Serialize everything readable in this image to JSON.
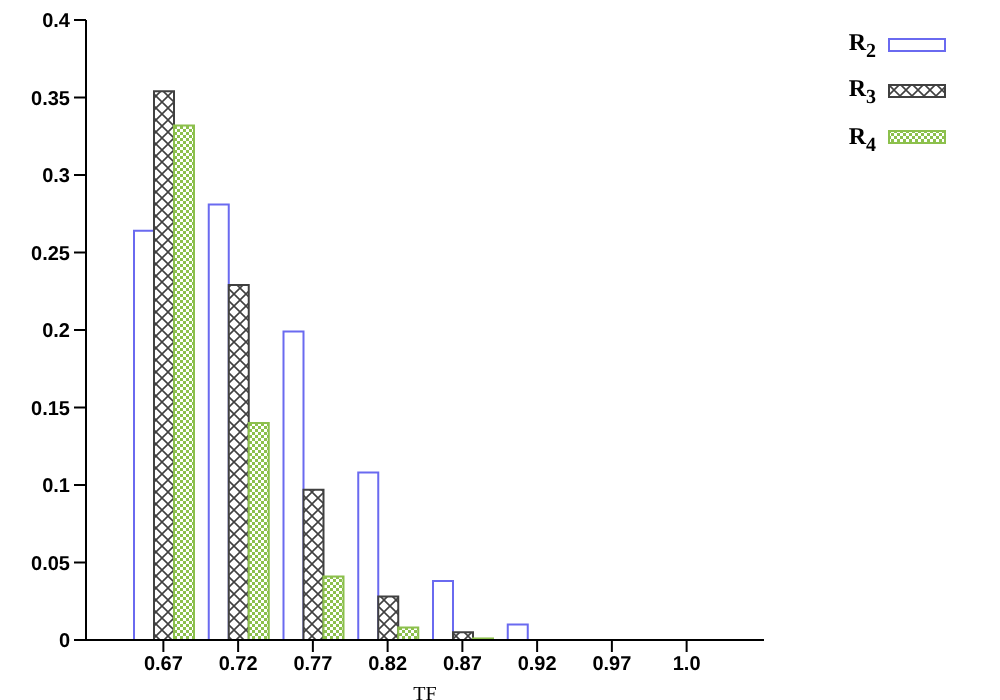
{
  "chart_data": {
    "type": "bar",
    "xlabel": "TF",
    "categories": [
      "0.67",
      "0.72",
      "0.77",
      "0.82",
      "0.87",
      "0.92",
      "0.97",
      "1.0"
    ],
    "series": [
      {
        "name": "R$_{2}$",
        "color": "#6a6af0",
        "values": [
          0.264,
          0.281,
          0.199,
          0.108,
          0.038,
          0.01,
          0,
          0
        ]
      },
      {
        "name": "R$_{3}$",
        "color": "#404040",
        "values": [
          0.354,
          0.229,
          0.097,
          0.028,
          0.005,
          0,
          0,
          0
        ]
      },
      {
        "name": "R$_{4}$",
        "color": "#8cc04c",
        "values": [
          0.332,
          0.14,
          0.041,
          0.008,
          0.001,
          0,
          0,
          0
        ]
      }
    ],
    "ylim": [
      0,
      0.4
    ],
    "yticks": [
      0,
      0.05,
      0.1,
      0.15,
      0.2,
      0.25,
      0.3,
      0.35,
      0.4
    ],
    "grid": false,
    "legend": "top right"
  }
}
